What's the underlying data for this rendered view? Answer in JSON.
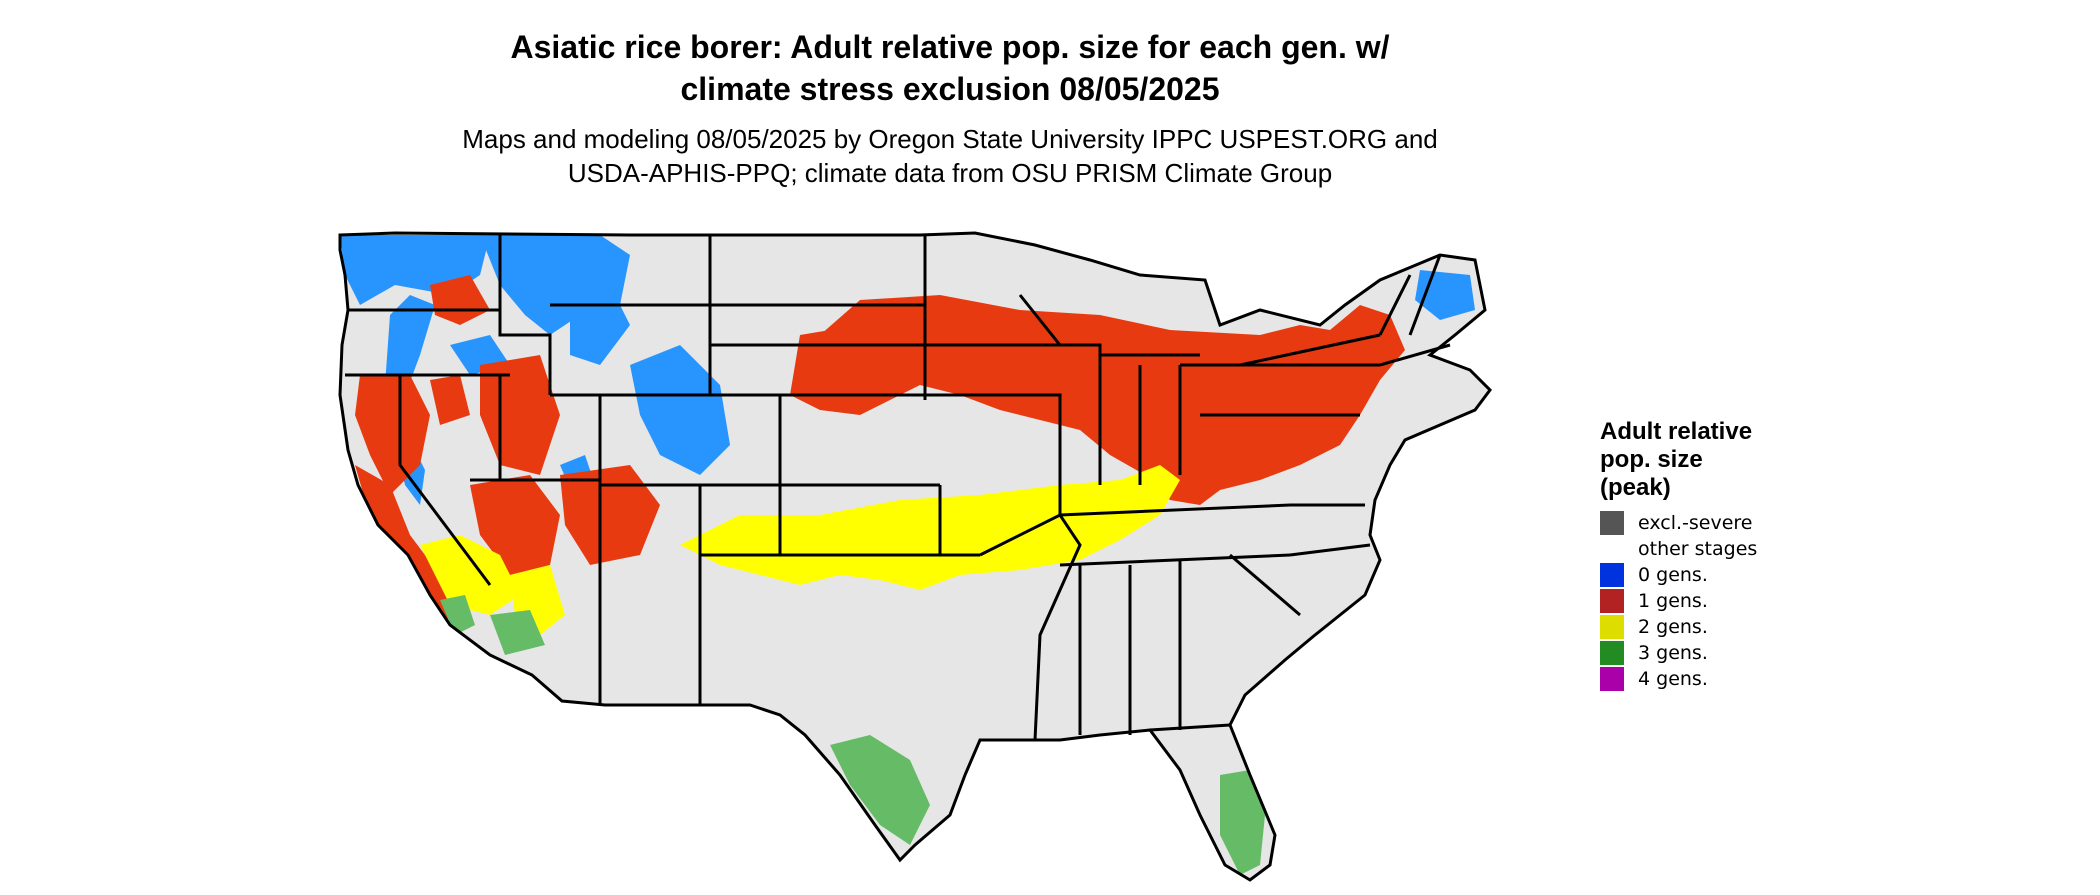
{
  "title": {
    "line1": "Asiatic rice borer: Adult relative pop. size for each gen. w/",
    "line2": "climate stress exclusion 08/05/2025"
  },
  "subtitle": {
    "line1": "Maps and modeling 08/05/2025 by Oregon State University IPPC USPEST.ORG and",
    "line2": "USDA-APHIS-PPQ; climate data from OSU PRISM Climate Group"
  },
  "legend": {
    "title_lines": [
      "Adult relative",
      "pop. size",
      "(peak)"
    ],
    "items": [
      {
        "label": "excl.-severe",
        "color": "#555555"
      },
      {
        "label": "other stages",
        "color": "#e6e6e6"
      },
      {
        "label": "0 gens.",
        "color": "#0033dd"
      },
      {
        "label": "1 gens.",
        "color": "#b22222"
      },
      {
        "label": "2 gens.",
        "color": "#dddd00"
      },
      {
        "label": "3 gens.",
        "color": "#228b22"
      },
      {
        "label": "4 gens.",
        "color": "#aa00aa"
      }
    ]
  },
  "map_colors": {
    "land": "#e6e6e6",
    "zero_gens": "#1e90ff",
    "one_gen": "#e83a10",
    "two_gens": "#ffff00",
    "three_gens": "#66bb66",
    "border": "#000000"
  }
}
